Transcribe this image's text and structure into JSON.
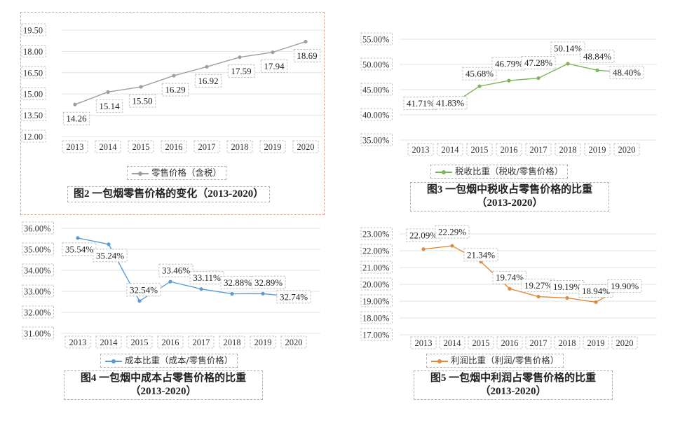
{
  "chart_data": [
    {
      "type": "line",
      "title": "图2 一包烟零售价格的变化（2013-2020）",
      "legend": "零售价格（含税）",
      "color": "#9e9e9e",
      "categories": [
        "2013",
        "2014",
        "2015",
        "2016",
        "2017",
        "2018",
        "2019",
        "2020"
      ],
      "values": [
        14.26,
        15.14,
        15.5,
        16.29,
        16.92,
        17.59,
        17.94,
        18.69
      ],
      "value_labels": [
        "14.26",
        "15.14",
        "15.50",
        "16.29",
        "16.92",
        "17.59",
        "17.94",
        "18.69"
      ],
      "y_ticks": [
        "19.50",
        "18.00",
        "16.50",
        "15.00",
        "13.50",
        "12.00"
      ],
      "ylim": [
        12.0,
        19.5
      ]
    },
    {
      "type": "line",
      "title": "图3 一包烟中税收占零售价格的比重（2013-2020）",
      "legend": "税收比重（税收/零售价格）",
      "color": "#7db35a",
      "categories": [
        "2013",
        "2014",
        "2015",
        "2016",
        "2017",
        "2018",
        "2019",
        "2020"
      ],
      "values": [
        41.71,
        41.83,
        45.68,
        46.79,
        47.28,
        50.14,
        48.84,
        48.4
      ],
      "value_labels": [
        "41.71%",
        "41.83%",
        "45.68%",
        "46.79%",
        "47.28%",
        "50.14%",
        "48.84%",
        "48.40%"
      ],
      "y_ticks": [
        "55.00%",
        "50.00%",
        "45.00%",
        "40.00%",
        "35.00%"
      ],
      "ylim": [
        35.0,
        55.0
      ]
    },
    {
      "type": "line",
      "title": "图4 一包烟中成本占零售价格的比重（2013-2020）",
      "legend": "成本比重（成本/零售价格）",
      "color": "#5b9bd5",
      "categories": [
        "2013",
        "2014",
        "2015",
        "2016",
        "2017",
        "2018",
        "2019",
        "2020"
      ],
      "values": [
        35.54,
        35.24,
        32.54,
        33.46,
        33.11,
        32.88,
        32.89,
        32.74
      ],
      "value_labels": [
        "35.54%",
        "35.24%",
        "32.54%",
        "33.46%",
        "33.11%",
        "32.88%",
        "32.89%",
        "32.74%"
      ],
      "y_ticks": [
        "36.00%",
        "35.00%",
        "34.00%",
        "33.00%",
        "32.00%",
        "31.00%"
      ],
      "ylim": [
        31.0,
        36.0
      ]
    },
    {
      "type": "line",
      "title": "图5 一包烟中利润占零售价格的比重（2013-2020）",
      "legend": "利润比重（利润/零售价格）",
      "color": "#e08a3c",
      "categories": [
        "2013",
        "2014",
        "2015",
        "2016",
        "2017",
        "2018",
        "2019",
        "2020"
      ],
      "values": [
        22.09,
        22.29,
        21.34,
        19.74,
        19.27,
        19.19,
        18.94,
        19.9
      ],
      "value_labels": [
        "22.09%",
        "22.29%",
        "21.34%",
        "19.74%",
        "19.27%",
        "19.19%",
        "18.94%",
        "19.90%"
      ],
      "y_ticks": [
        "23.00%",
        "22.00%",
        "21.00%",
        "20.00%",
        "19.00%",
        "18.00%",
        "17.00%"
      ],
      "ylim": [
        17.0,
        23.0
      ]
    }
  ],
  "captions": {
    "c1": "图2 一包烟零售价格的变化（2013-2020）",
    "c2_line1": "图3 一包烟中税收占零售价格的比重",
    "c2_line2": "（2013-2020）",
    "c3_line1": "图4 一包烟中成本占零售价格的比重",
    "c3_line2": "（2013-2020）",
    "c4_line1": "图5 一包烟中利润占零售价格的比重",
    "c4_line2": "（2013-2020）"
  },
  "legends": {
    "l1": "零售价格（含税）",
    "l2": "税收比重（税收/零售价格）",
    "l3": "成本比重（成本/零售价格）",
    "l4": "利润比重（利润/零售价格）"
  }
}
